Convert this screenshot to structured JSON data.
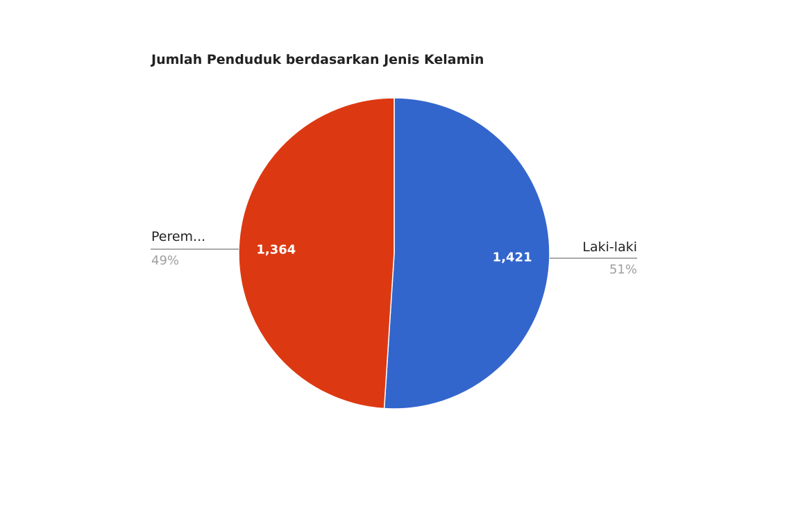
{
  "chart_data": {
    "type": "pie",
    "title": "Jumlah Penduduk berdasarkan Jenis Kelamin",
    "slices": [
      {
        "name": "Laki-laki",
        "value": 1421,
        "value_label": "1,421",
        "percent_label": "51%",
        "color": "#3366cc"
      },
      {
        "name": "Perem...",
        "value": 1364,
        "value_label": "1,364",
        "percent_label": "49%",
        "color": "#dc3912"
      }
    ],
    "legend": "none",
    "label_placement": "outside-left-right"
  }
}
